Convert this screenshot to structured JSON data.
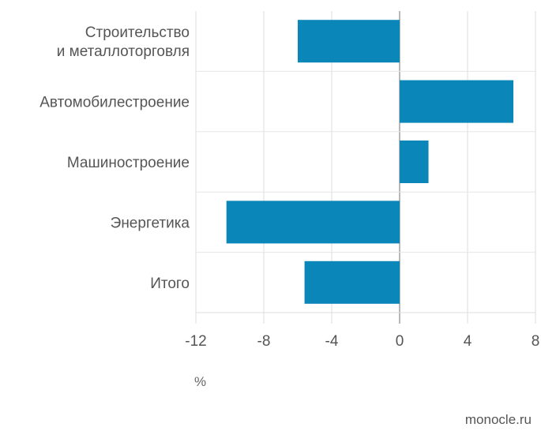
{
  "chart_data": {
    "type": "bar",
    "orientation": "horizontal",
    "categories": [
      [
        "Строительство",
        "и металлоторговля"
      ],
      [
        "Автомобилестроение"
      ],
      [
        "Машиностроение"
      ],
      [
        "Энергетика"
      ],
      [
        "Итого"
      ]
    ],
    "values": [
      -6.0,
      6.7,
      1.7,
      -10.2,
      -5.6
    ],
    "xlim": [
      -12,
      8
    ],
    "xticks": [
      "-12",
      "-8",
      "-4",
      "0",
      "4",
      "8"
    ],
    "xlabel": "%",
    "grid": true,
    "bar_color": "#0a87b8"
  },
  "source": "monocle.ru"
}
